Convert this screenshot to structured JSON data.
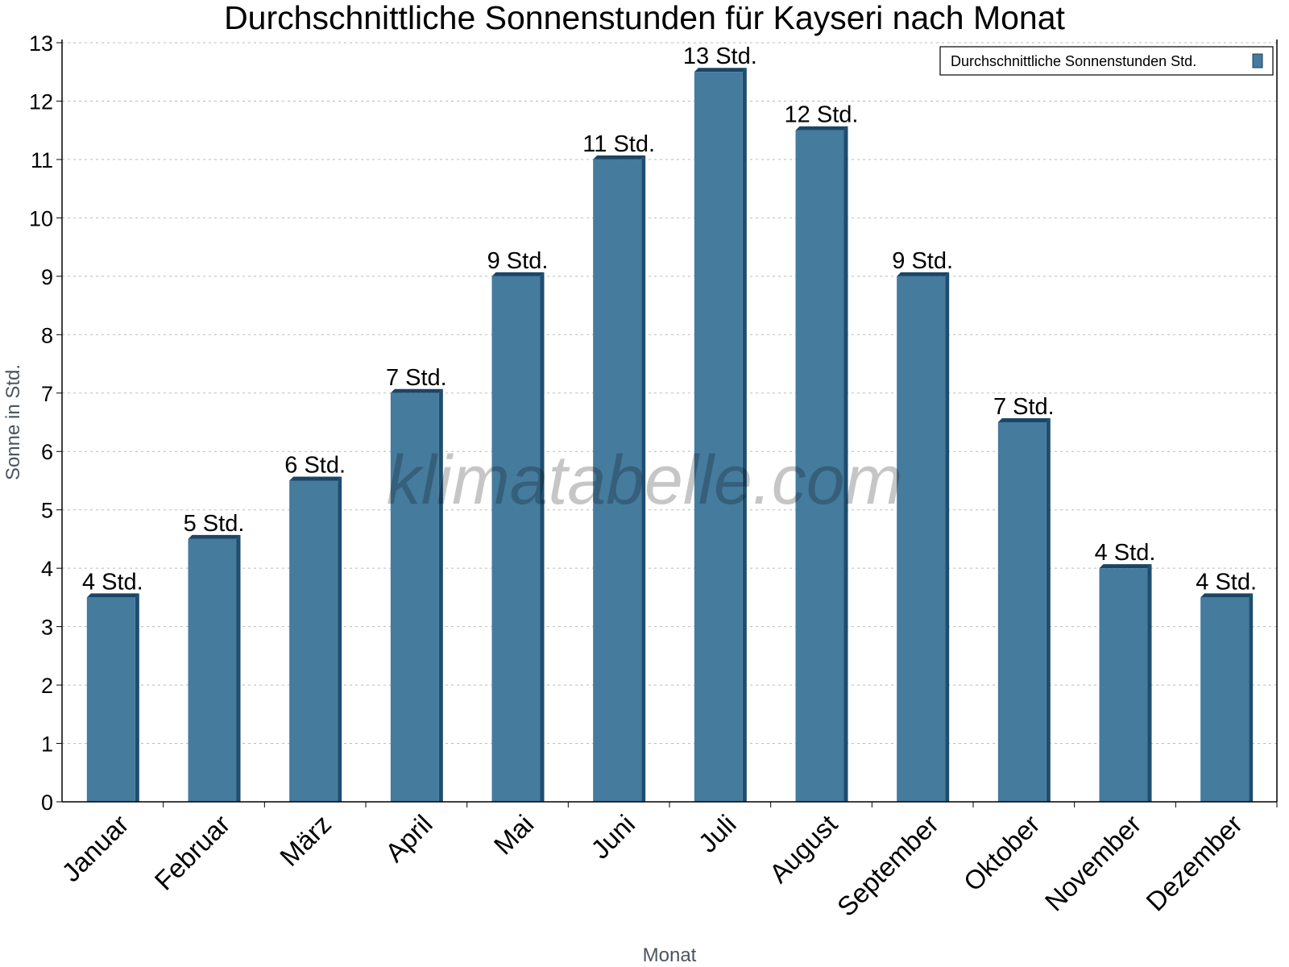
{
  "chart_data": {
    "type": "bar",
    "title": "Durchschnittliche Sonnenstunden für Kayseri nach Monat",
    "xlabel": "Monat",
    "ylabel": "Sonne in Std.",
    "ylim": [
      0,
      13
    ],
    "yticks": [
      0,
      1,
      2,
      3,
      4,
      5,
      6,
      7,
      8,
      9,
      10,
      11,
      12,
      13
    ],
    "grid": true,
    "legend_position": "top-right",
    "categories": [
      "Januar",
      "Februar",
      "März",
      "April",
      "Mai",
      "Juni",
      "Juli",
      "August",
      "September",
      "Oktober",
      "November",
      "Dezember"
    ],
    "series": [
      {
        "name": "Durchschnittliche Sonnenstunden Std.",
        "color": "#457b9d",
        "values": [
          3.5,
          4.5,
          5.5,
          7,
          9,
          11,
          12.5,
          11.5,
          9,
          6.5,
          4,
          3.5
        ],
        "data_labels": [
          "4 Std.",
          "5 Std.",
          "6 Std.",
          "7 Std.",
          "9 Std.",
          "11 Std.",
          "13 Std.",
          "12 Std.",
          "9 Std.",
          "7 Std.",
          "4 Std.",
          "4 Std."
        ]
      }
    ],
    "watermark": "klimatabelle.com"
  }
}
